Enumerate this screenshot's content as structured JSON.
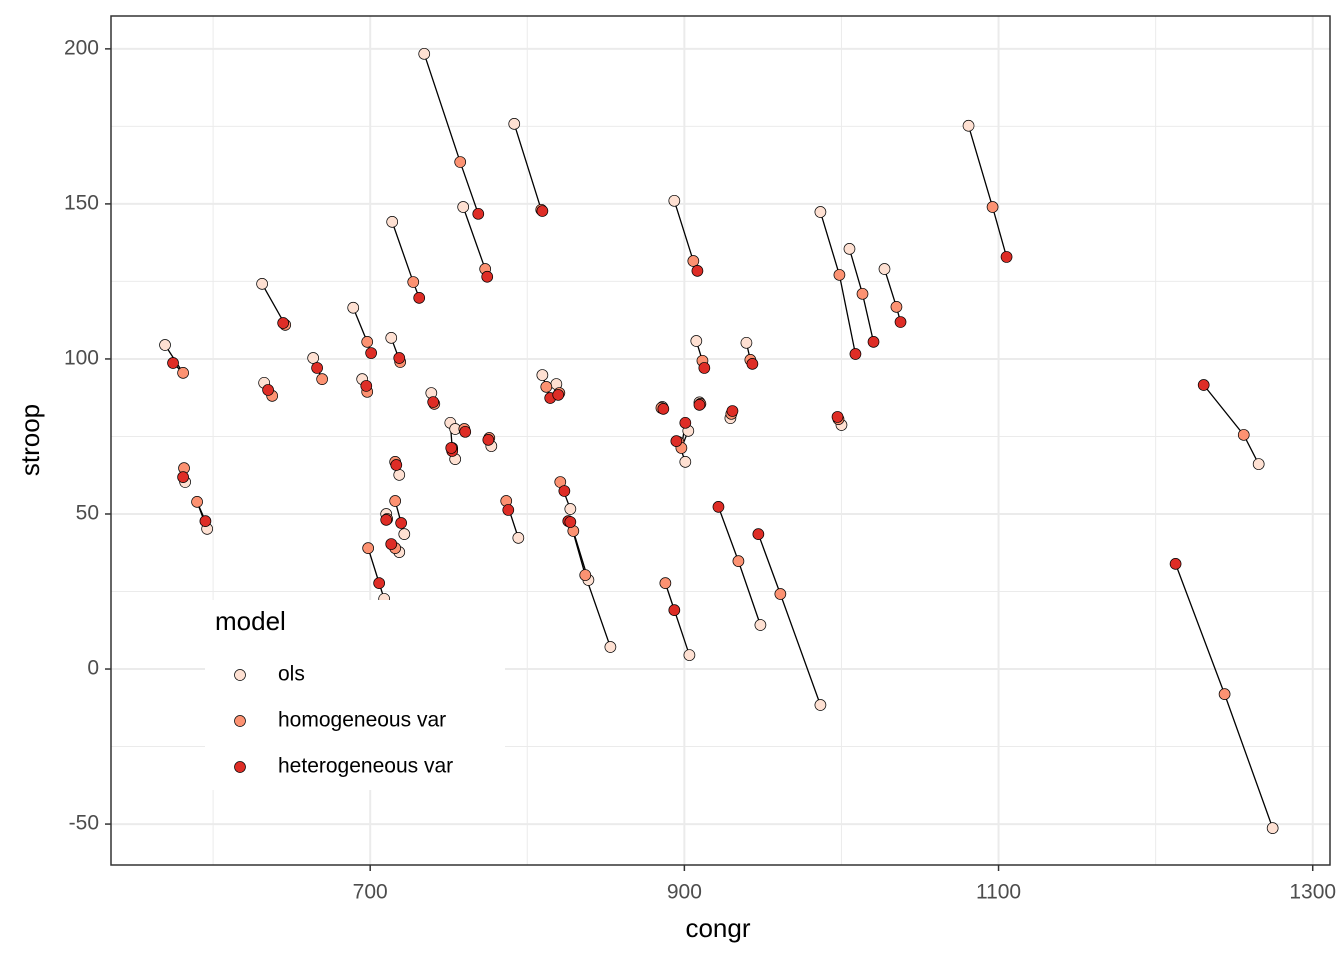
{
  "chart_data": {
    "type": "scatter",
    "xlabel": "congr",
    "ylabel": "stroop",
    "xlim": [
      535,
      1311
    ],
    "ylim": [
      -63.2,
      210.6
    ],
    "xticks": [
      700,
      900,
      1100,
      1300
    ],
    "yticks": [
      -50,
      0,
      50,
      100,
      150,
      200
    ],
    "grid": true,
    "legend": "bottom-left",
    "legend_title": "model",
    "series": [
      {
        "name": "ols",
        "color": "#fee0d2",
        "x": [
          734.4,
          791.7,
          759.2,
          714,
          631.2,
          569.4,
          663.7,
          689.2,
          713.4,
          632.5,
          694.9,
          738.9,
          751,
          754.1,
          754.1,
          777.1,
          582.2,
          596.2,
          718.5,
          721.7,
          710.2,
          718.5,
          708.9,
          794.3,
          809.6,
          818.5,
          827.4,
          838.9,
          852.9,
          886,
          893.6,
          907.6,
          909.6,
          900.6,
          902.5,
          929.3,
          939.5,
          948.4,
          986.6,
          903.2,
          986.6,
          1005.1,
          1027.4,
          1000,
          1080.9,
          1265.6,
          1274.5
        ],
        "y": [
          198.4,
          175.8,
          149,
          144.2,
          124.2,
          104.5,
          100.3,
          116.5,
          106.8,
          92.3,
          93.5,
          89,
          79.4,
          77.4,
          67.7,
          71.9,
          60.3,
          45.2,
          62.6,
          43.5,
          50,
          37.7,
          22.6,
          42.3,
          94.8,
          91.9,
          51.6,
          28.7,
          7.1,
          84.5,
          151,
          105.8,
          86,
          66.8,
          76.8,
          80.9,
          105.2,
          14.2,
          -11.6,
          4.5,
          147.4,
          135.5,
          129,
          78.7,
          175.2,
          66.1,
          -51.3
        ]
      },
      {
        "name": "homogeneous var",
        "color": "#fc9272",
        "x": [
          757.3,
          808.9,
          773.2,
          727.4,
          645.9,
          580.9,
          669.4,
          698.1,
          719.1,
          637.6,
          698.1,
          740.8,
          752.2,
          759.9,
          752.2,
          775.8,
          581.5,
          589.8,
          715.9,
          715.9,
          710.8,
          715.9,
          698.7,
          786.6,
          812.1,
          820.4,
          821,
          829.3,
          836.9,
          885.4,
          905.7,
          911.5,
          910.2,
          896.2,
          898.1,
          929.9,
          942,
          934.4,
          961.1,
          887.9,
          998.7,
          1013.4,
          1035,
          998.1,
          1096.2,
          1256.1,
          1243.9
        ],
        "y": [
          163.5,
          148.1,
          129,
          124.8,
          111,
          95.5,
          93.5,
          105.5,
          99,
          88.1,
          89.4,
          85.5,
          71.3,
          77.4,
          70.6,
          74.5,
          64.8,
          53.9,
          66.8,
          54.2,
          48.4,
          39,
          39,
          54.2,
          91,
          89,
          60.3,
          44.5,
          30.3,
          84.2,
          131.6,
          99.4,
          85.5,
          73.2,
          71.3,
          82.3,
          99.7,
          34.8,
          24.2,
          27.7,
          127.1,
          121,
          116.8,
          80.6,
          149,
          75.5,
          -8.1
        ]
      },
      {
        "name": "heterogeneous var",
        "color": "#de2d26",
        "x": [
          768.8,
          809.6,
          774.5,
          731.2,
          644.6,
          574.5,
          666.2,
          700.6,
          718.5,
          635,
          697.5,
          740.1,
          752.2,
          760.5,
          751.6,
          775.2,
          580.9,
          595.1,
          716.6,
          719.7,
          710.2,
          713.4,
          705.7,
          787.9,
          814.6,
          819.7,
          823.6,
          826.1,
          827.4,
          886.6,
          908.3,
          912.7,
          909.6,
          894.9,
          900.6,
          930.6,
          943.3,
          921.7,
          947.1,
          893.6,
          1008.9,
          1020.4,
          1037.6,
          997.5,
          1105.1,
          1230.6,
          1212.7
        ],
        "y": [
          146.8,
          147.7,
          126.5,
          119.7,
          111.6,
          98.7,
          97.1,
          101.9,
          100.3,
          90,
          91.3,
          86.1,
          70.3,
          76.5,
          71.3,
          73.9,
          61.9,
          47.7,
          65.8,
          47.1,
          48.1,
          40.3,
          27.7,
          51.3,
          87.4,
          88.4,
          57.4,
          47.7,
          47.4,
          83.9,
          128.4,
          97.1,
          85.2,
          73.5,
          79.4,
          83.2,
          98.4,
          52.3,
          43.5,
          19,
          101.6,
          105.5,
          111.9,
          81.3,
          132.9,
          91.6,
          33.9
        ]
      }
    ]
  }
}
